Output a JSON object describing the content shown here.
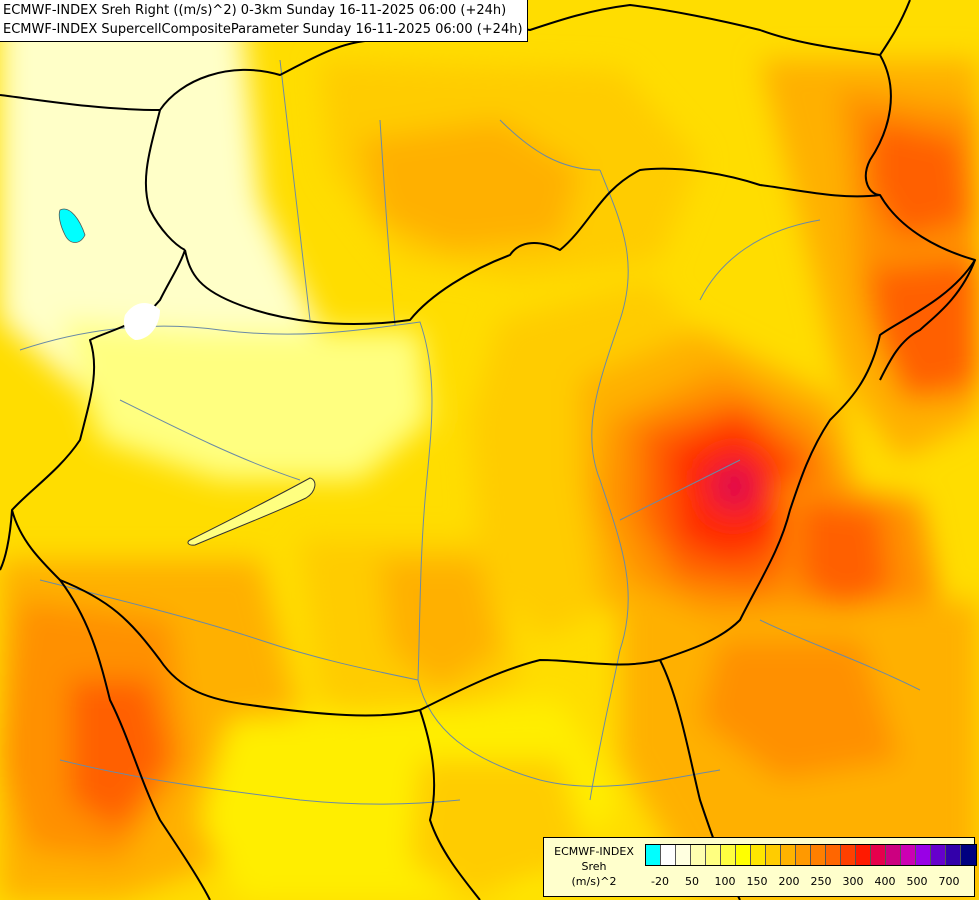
{
  "header": {
    "line1": "ECMWF-INDEX Sreh Right ((m/s)^2) 0-3km Sunday 16-11-2025 06:00 (+24h)",
    "line2": "ECMWF-INDEX SupercellCompositeParameter Sunday 16-11-2025 06:00 (+24h)"
  },
  "legend": {
    "line1": "ECMWF-INDEX",
    "line2": "Sreh",
    "line3": "(m/s)^2",
    "colors": [
      "#00ffff",
      "#ffffff",
      "#ffffe0",
      "#ffffb0",
      "#ffff80",
      "#ffff40",
      "#ffff00",
      "#ffe600",
      "#ffcc00",
      "#ffb300",
      "#ff9900",
      "#ff7f00",
      "#ff6600",
      "#ff4000",
      "#ff1a00",
      "#e6004c",
      "#cc0080",
      "#cc00b3",
      "#9900e6",
      "#6600cc",
      "#3300aa",
      "#000080"
    ],
    "ticks": [
      "-20",
      "50",
      "100",
      "150",
      "200",
      "250",
      "300",
      "400",
      "500",
      "700"
    ]
  },
  "palette": {
    "very_light": "#ffffc8",
    "light": "#ffff80",
    "yellow": "#ffee00",
    "gold": "#ffcc00",
    "orange": "#ffb000",
    "dark_orange": "#ff9000",
    "red_orange": "#ff6000",
    "red": "#ff2a00",
    "crimson": "#e0004c",
    "cyan": "#00ffff",
    "border": "#000000",
    "river": "#6080a0"
  }
}
